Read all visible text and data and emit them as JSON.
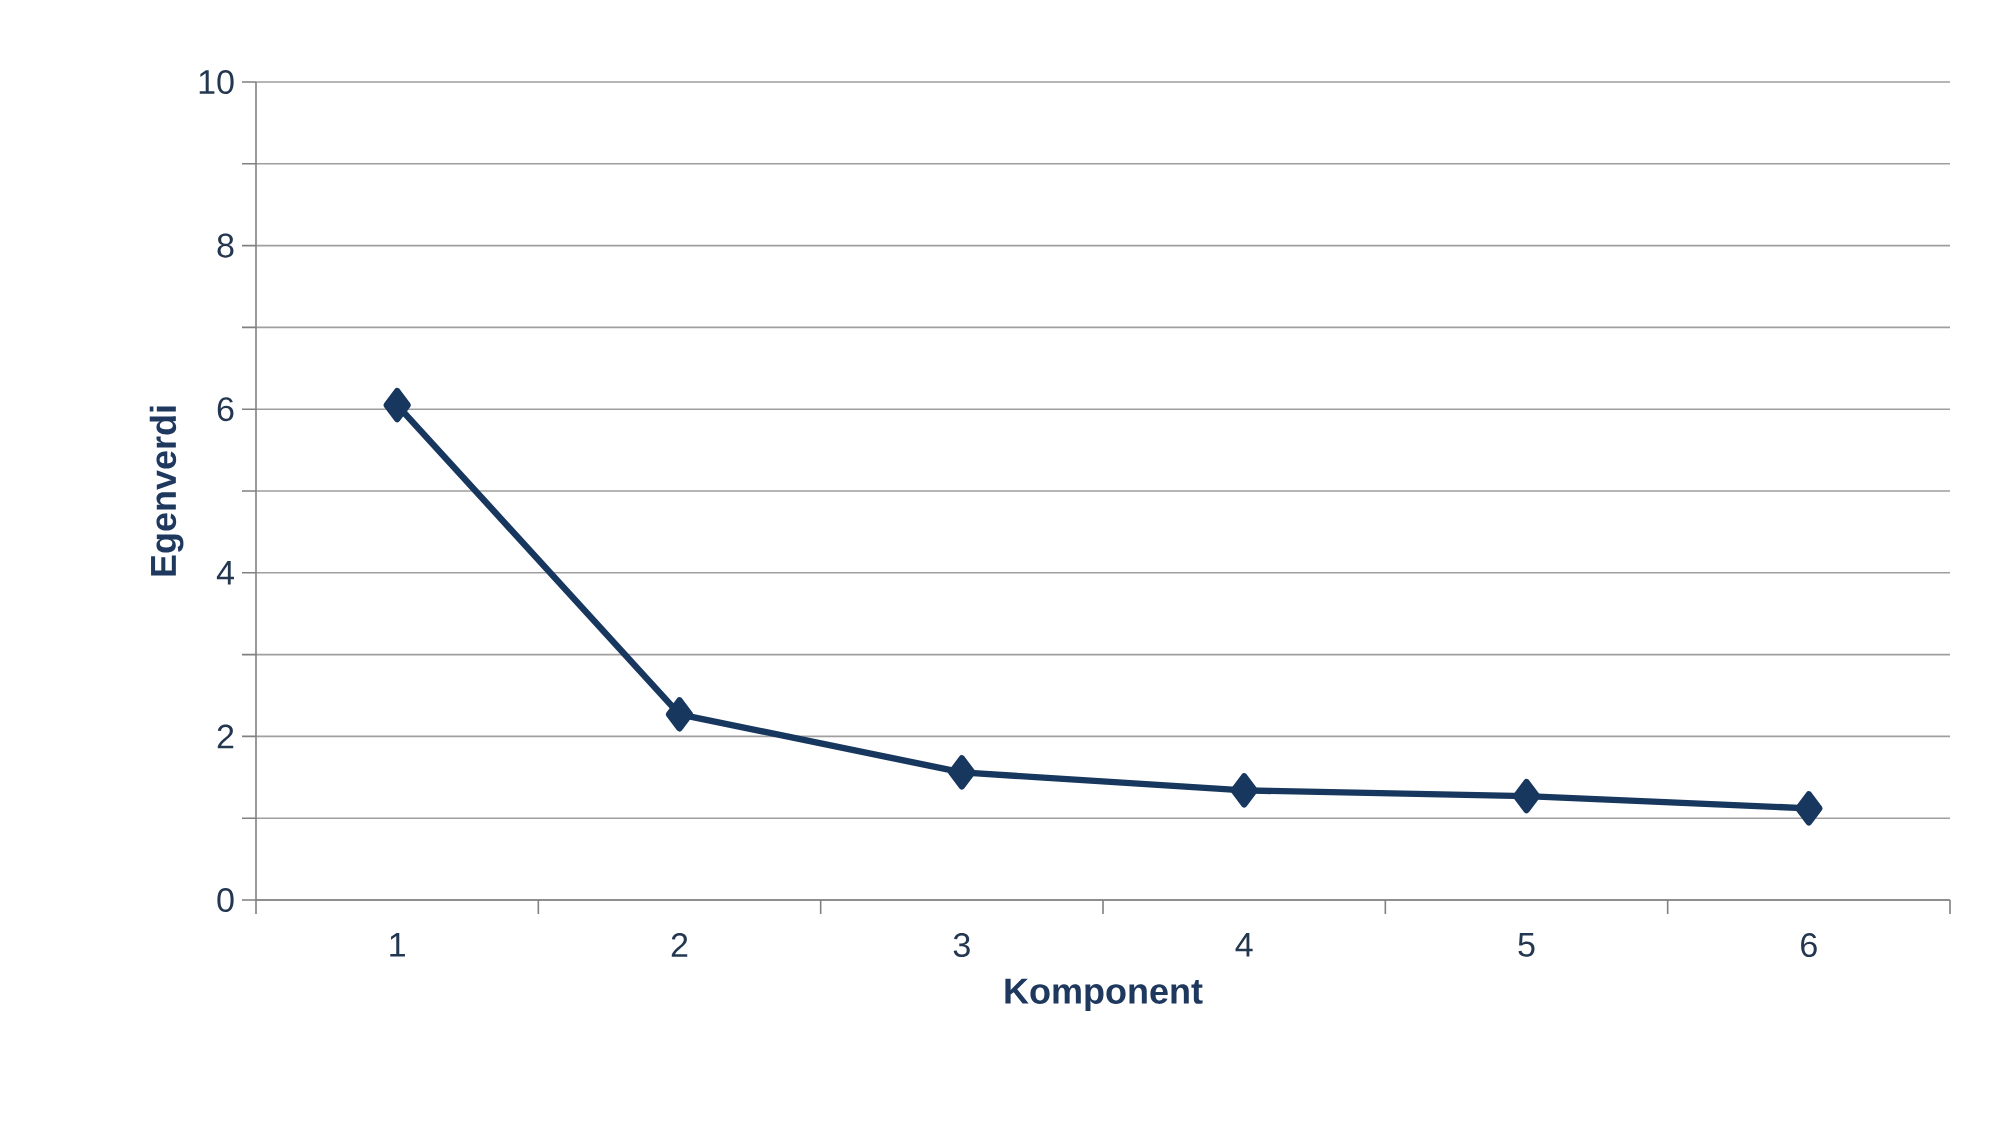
{
  "chart_data": {
    "type": "line",
    "xlabel": "Komponent",
    "ylabel": "Egenverdi",
    "categories": [
      "1",
      "2",
      "3",
      "4",
      "5",
      "6"
    ],
    "series": [
      {
        "color": "#17375e",
        "values": [
          6.05,
          2.27,
          1.56,
          1.34,
          1.27,
          1.12
        ]
      }
    ],
    "ylim": [
      0,
      10
    ],
    "yticks": [
      0,
      {
        "value": 1,
        "label": null
      },
      2,
      {
        "value": 3,
        "label": null
      },
      4,
      {
        "value": 5,
        "label": null
      },
      6,
      {
        "value": 7,
        "label": null
      },
      8,
      {
        "value": 9,
        "label": null
      },
      10
    ],
    "grid": "y",
    "marker": "diamond",
    "line_style": "solid"
  }
}
